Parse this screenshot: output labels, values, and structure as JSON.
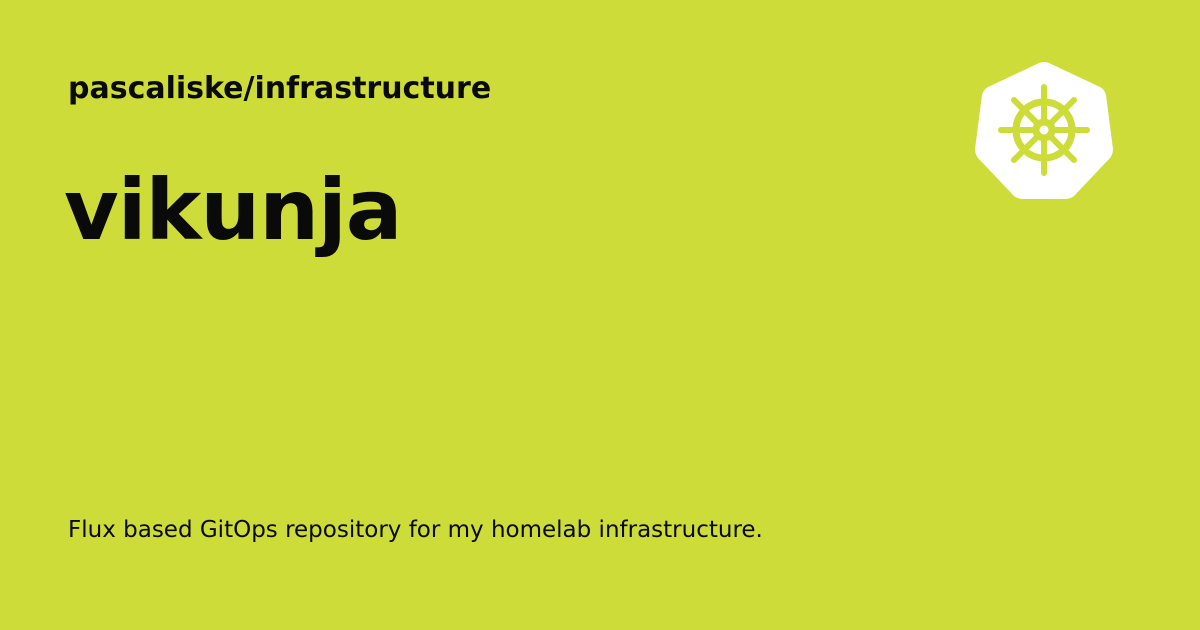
{
  "card": {
    "repo_path": "pascaliske/infrastructure",
    "title": "vikunja",
    "description": "Flux based GitOps repository for my homelab infrastructure.",
    "logo_icon": "kubernetes-helm-wheel-icon",
    "colors": {
      "background": "#cddc38",
      "text": "#0a0a0a",
      "logo": "#ffffff"
    }
  }
}
